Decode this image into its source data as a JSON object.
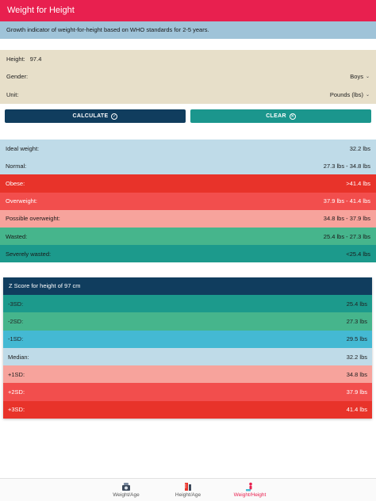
{
  "header": {
    "title": "Weight for Height"
  },
  "info": {
    "text": "Growth indicator of weight-for-height based on WHO standards for 2-5 years."
  },
  "form": {
    "height_label": "Height:",
    "height_value": "97.4",
    "gender_label": "Gender:",
    "gender_value": "Boys",
    "unit_label": "Unit:",
    "unit_value": "Pounds (lbs)"
  },
  "buttons": {
    "calculate": "CALCULATE",
    "clear": "CLEAR"
  },
  "results": [
    {
      "label": "Ideal weight:",
      "value": "32.2 lbs",
      "color": "#bfdbe8",
      "light": false
    },
    {
      "label": "Normal:",
      "value": "27.3 lbs - 34.8 lbs",
      "color": "#bfdbe8",
      "light": false
    },
    {
      "label": "Obese:",
      "value": ">41.4 lbs",
      "color": "#e8332a",
      "light": true
    },
    {
      "label": "Overweight:",
      "value": "37.9 lbs - 41.4 lbs",
      "color": "#f24e4d",
      "light": true
    },
    {
      "label": "Possible overweight:",
      "value": "34.8 lbs - 37.9 lbs",
      "color": "#f7a39c",
      "light": false
    },
    {
      "label": "Wasted:",
      "value": "25.4 lbs - 27.3 lbs",
      "color": "#46b58c",
      "light": false
    },
    {
      "label": "Severely wasted:",
      "value": "<25.4 lbs",
      "color": "#1c9a8c",
      "light": false
    }
  ],
  "zscore": {
    "title": "Z Score for height of 97 cm",
    "rows": [
      {
        "label": "-3SD:",
        "value": "25.4 lbs",
        "color": "#1c9a8c",
        "light": false
      },
      {
        "label": "-2SD:",
        "value": "27.3 lbs",
        "color": "#46b58c",
        "light": false
      },
      {
        "label": "-1SD:",
        "value": "29.5 lbs",
        "color": "#44b9d3",
        "light": false
      },
      {
        "label": "Median:",
        "value": "32.2 lbs",
        "color": "#bfdbe8",
        "light": false
      },
      {
        "label": "+1SD:",
        "value": "34.8 lbs",
        "color": "#f7a39c",
        "light": false
      },
      {
        "label": "+2SD:",
        "value": "37.9 lbs",
        "color": "#f24e4d",
        "light": true
      },
      {
        "label": "+3SD:",
        "value": "41.4 lbs",
        "color": "#e8332a",
        "light": true
      }
    ]
  },
  "tabs": [
    {
      "label": "Weight/Age",
      "icon": "scale-icon",
      "active": false
    },
    {
      "label": "Height/Age",
      "icon": "ruler-icon",
      "active": false
    },
    {
      "label": "Weight/Height",
      "icon": "person-icon",
      "active": true
    }
  ],
  "colors": {
    "accent": "#e8204f",
    "navy": "#103d5e",
    "teal": "#1b968d"
  }
}
